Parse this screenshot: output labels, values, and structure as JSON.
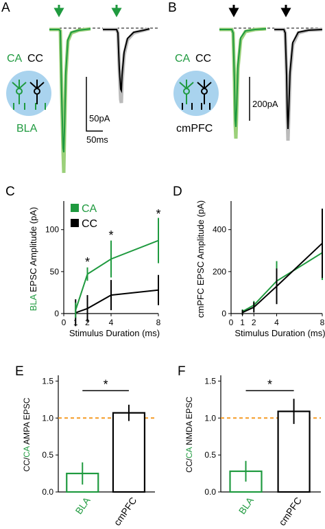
{
  "colors": {
    "ca": "#1f9a3f",
    "cc": "#000000",
    "ref_line": "#f59a23",
    "circle_fill": "#a9d3ee",
    "gray": "#bbbbbb",
    "light_green": "#9bd07a"
  },
  "panel_letters": [
    "A",
    "B",
    "C",
    "D",
    "E",
    "F"
  ],
  "panel_a": {
    "ca_label": "CA",
    "cc_label": "CC",
    "input_label": "BLA",
    "scale_y": "50pA",
    "scale_x": "50ms"
  },
  "panel_b": {
    "ca_label": "CA",
    "cc_label": "CC",
    "input_label": "cmPFC",
    "scale_y": "200pA"
  },
  "chart_data": [
    {
      "panel": "C",
      "type": "line",
      "ylabel_colored": "BLA",
      "ylabel_rest": " EPSC Amplitude (pA)",
      "xlabel": "Stimulus Duration (ms)",
      "xlim": [
        0,
        8
      ],
      "ylim": [
        0,
        130
      ],
      "x_ticks": [
        0,
        1,
        2,
        4,
        8
      ],
      "y_ticks": [
        0,
        50,
        100
      ],
      "legend": [
        "CA",
        "CC"
      ],
      "series": [
        {
          "name": "CA",
          "x": [
            1,
            2,
            4,
            8
          ],
          "y": [
            4,
            47,
            65,
            87
          ],
          "err": [
            9,
            8,
            22,
            27
          ]
        },
        {
          "name": "CC",
          "x": [
            1,
            2,
            4,
            8
          ],
          "y": [
            1,
            6,
            22,
            28
          ],
          "err": [
            16,
            16,
            18,
            18
          ]
        }
      ],
      "annotations": [
        {
          "text": "*",
          "x": 2,
          "y": 63
        },
        {
          "text": "*",
          "x": 4,
          "y": 95
        },
        {
          "text": "*",
          "x": 8,
          "y": 120
        }
      ]
    },
    {
      "panel": "D",
      "type": "line",
      "ylabel": "cmPFC EPSC Amplitude (pA)",
      "xlabel": "Stimulus Duration (ms)",
      "xlim": [
        0,
        8
      ],
      "ylim": [
        0,
        520
      ],
      "x_ticks": [
        0,
        1,
        2,
        4,
        8
      ],
      "y_ticks": [
        0,
        200,
        400
      ],
      "series": [
        {
          "name": "CA",
          "x": [
            1,
            2,
            4,
            8
          ],
          "y": [
            10,
            40,
            155,
            290
          ],
          "err": [
            10,
            20,
            95,
            130
          ]
        },
        {
          "name": "CC",
          "x": [
            1,
            2,
            4,
            8
          ],
          "y": [
            5,
            30,
            130,
            335
          ],
          "err": [
            12,
            25,
            85,
            165
          ]
        }
      ]
    },
    {
      "panel": "E",
      "type": "bar",
      "ylabel_parts": [
        "CC/",
        "CA",
        " AMPA EPSC"
      ],
      "categories": [
        "BLA",
        "cmPFC"
      ],
      "values": [
        0.25,
        1.07
      ],
      "errors": [
        0.15,
        0.11
      ],
      "ylim": [
        0,
        1.55
      ],
      "y_ticks": [
        0.0,
        0.5,
        1.0,
        1.5
      ],
      "ref_line": 1.0,
      "significance": "*"
    },
    {
      "panel": "F",
      "type": "bar",
      "ylabel_parts": [
        "CC/",
        "CA",
        " NMDA EPSC"
      ],
      "categories": [
        "BLA",
        "cmPFC"
      ],
      "values": [
        0.28,
        1.09
      ],
      "errors": [
        0.14,
        0.17
      ],
      "ylim": [
        0,
        1.55
      ],
      "y_ticks": [
        0.0,
        0.5,
        1.0,
        1.5
      ],
      "ref_line": 1.0,
      "significance": "*"
    }
  ]
}
